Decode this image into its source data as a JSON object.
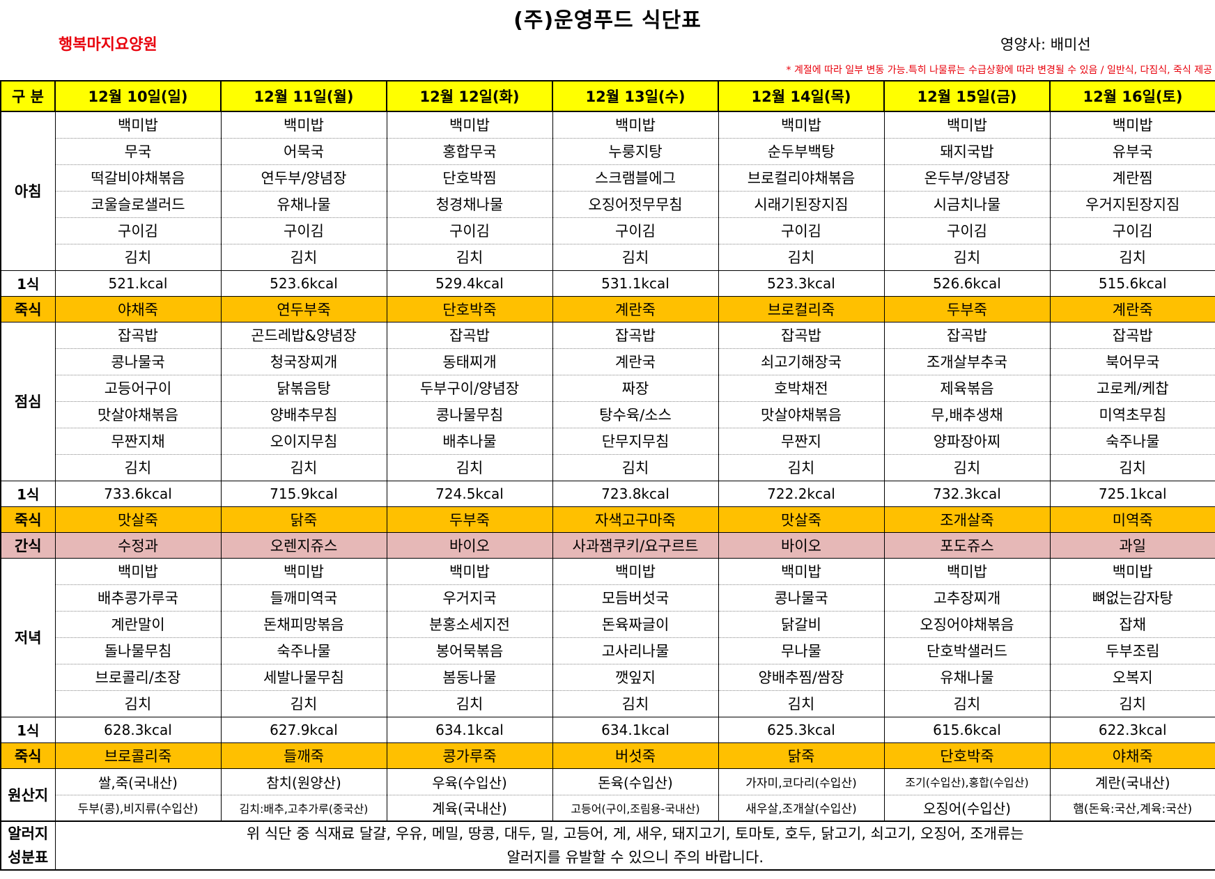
{
  "title": "(주)운영푸드 식단표",
  "facility": "행복마지요양원",
  "dietitian": "영양사: 배미선",
  "notice": "* 계절에 따라 일부 변동 가능.특히 나물류는 수급상황에 따라 변경될 수 있음 / 일반식, 다짐식, 죽식 제공",
  "header_label": "구 분",
  "days": [
    "12월 10일(일)",
    "12월 11일(월)",
    "12월 12일(화)",
    "12월 13일(수)",
    "12월 14일(목)",
    "12월 15일(금)",
    "12월 16일(토)"
  ],
  "breakfast": {
    "label": "아침",
    "rows": [
      [
        "백미밥",
        "백미밥",
        "백미밥",
        "백미밥",
        "백미밥",
        "백미밥",
        "백미밥"
      ],
      [
        "무국",
        "어묵국",
        "홍합무국",
        "누룽지탕",
        "순두부백탕",
        "돼지국밥",
        "유부국"
      ],
      [
        "떡갈비야채볶음",
        "연두부/양념장",
        "단호박찜",
        "스크램블에그",
        "브로컬리야채볶음",
        "온두부/양념장",
        "계란찜"
      ],
      [
        "코울슬로샐러드",
        "유채나물",
        "청경채나물",
        "오징어젓무무침",
        "시래기된장지짐",
        "시금치나물",
        "우거지된장지짐"
      ],
      [
        "구이김",
        "구이김",
        "구이김",
        "구이김",
        "구이김",
        "구이김",
        "구이김"
      ],
      [
        "김치",
        "김치",
        "김치",
        "김치",
        "김치",
        "김치",
        "김치"
      ]
    ],
    "kcal_label": "1식",
    "kcal": [
      "521.kcal",
      "523.6kcal",
      "529.4kcal",
      "531.1kcal",
      "523.3kcal",
      "526.6kcal",
      "515.6kcal"
    ],
    "porridge_label": "죽식",
    "porridge": [
      "야채죽",
      "연두부죽",
      "단호박죽",
      "계란죽",
      "브로컬리죽",
      "두부죽",
      "계란죽"
    ]
  },
  "lunch": {
    "label": "점심",
    "rows": [
      [
        "잡곡밥",
        "곤드레밥&양념장",
        "잡곡밥",
        "잡곡밥",
        "잡곡밥",
        "잡곡밥",
        "잡곡밥"
      ],
      [
        "콩나물국",
        "청국장찌개",
        "동태찌개",
        "계란국",
        "쇠고기해장국",
        "조개살부추국",
        "북어무국"
      ],
      [
        "고등어구이",
        "닭볶음탕",
        "두부구이/양념장",
        "짜장",
        "호박채전",
        "제육볶음",
        "고로케/케찹"
      ],
      [
        "맛살야채볶음",
        "양배추무침",
        "콩나물무침",
        "탕수육/소스",
        "맛살야채볶음",
        "무,배추생채",
        "미역초무침"
      ],
      [
        "무짠지채",
        "오이지무침",
        "배추나물",
        "단무지무침",
        "무짠지",
        "양파장아찌",
        "숙주나물"
      ],
      [
        "김치",
        "김치",
        "김치",
        "김치",
        "김치",
        "김치",
        "김치"
      ]
    ],
    "kcal_label": "1식",
    "kcal": [
      "733.6kcal",
      "715.9kcal",
      "724.5kcal",
      "723.8kcal",
      "722.2kcal",
      "732.3kcal",
      "725.1kcal"
    ],
    "porridge_label": "죽식",
    "porridge": [
      "맛살죽",
      "닭죽",
      "두부죽",
      "자색고구마죽",
      "맛살죽",
      "조개살죽",
      "미역죽"
    ]
  },
  "snack": {
    "label": "간식",
    "items": [
      "수정과",
      "오렌지쥬스",
      "바이오",
      "사과잼쿠키/요구르트",
      "바이오",
      "포도쥬스",
      "과일"
    ]
  },
  "dinner": {
    "label": "저녁",
    "rows": [
      [
        "백미밥",
        "백미밥",
        "백미밥",
        "백미밥",
        "백미밥",
        "백미밥",
        "백미밥"
      ],
      [
        "배추콩가루국",
        "들깨미역국",
        "우거지국",
        "모듬버섯국",
        "콩나물국",
        "고추장찌개",
        "뼈없는감자탕"
      ],
      [
        "계란말이",
        "돈채피망볶음",
        "분홍소세지전",
        "돈육짜글이",
        "닭갈비",
        "오징어야채볶음",
        "잡채"
      ],
      [
        "돌나물무침",
        "숙주나물",
        "봉어묵볶음",
        "고사리나물",
        "무나물",
        "단호박샐러드",
        "두부조림"
      ],
      [
        "브로콜리/초장",
        "세발나물무침",
        "봄동나물",
        "깻잎지",
        "양배추찜/쌈장",
        "유채나물",
        "오복지"
      ],
      [
        "김치",
        "김치",
        "김치",
        "김치",
        "김치",
        "김치",
        "김치"
      ]
    ],
    "kcal_label": "1식",
    "kcal": [
      "628.3kcal",
      "627.9kcal",
      "634.1kcal",
      "634.1kcal",
      "625.3kcal",
      "615.6kcal",
      "622.3kcal"
    ],
    "porridge_label": "죽식",
    "porridge": [
      "브로콜리죽",
      "들깨죽",
      "콩가루죽",
      "버섯죽",
      "닭죽",
      "단호박죽",
      "야채죽"
    ]
  },
  "origin": {
    "label": "원산지",
    "rows": [
      [
        "쌀,죽(국내산)",
        "참치(원양산)",
        "우육(수입산)",
        "돈육(수입산)",
        "가자미,코다리(수입산)",
        "조기(수입산),홍합(수입산)",
        "계란(국내산)"
      ],
      [
        "두부(콩),비지류(수입산)",
        "김치:배추,고추가루(중국산)",
        "계육(국내산)",
        "고등어(구이,조림용-국내산)",
        "새우살,조개살(수입산)",
        "오징어(수입산)",
        "햄(돈육:국산,계육:국산)"
      ]
    ]
  },
  "allergy": {
    "label_line1": "알러지",
    "label_line2": "성분표",
    "line1": "위 식단 중 식재료 달걀, 우유, 메밀, 땅콩, 대두, 밀, 고등어, 게, 새우, 돼지고기, 토마토, 호두, 닭고기, 쇠고기, 오징어, 조개류는",
    "line2": "알러지를 유발할 수 있으니 주의 바랍니다."
  }
}
